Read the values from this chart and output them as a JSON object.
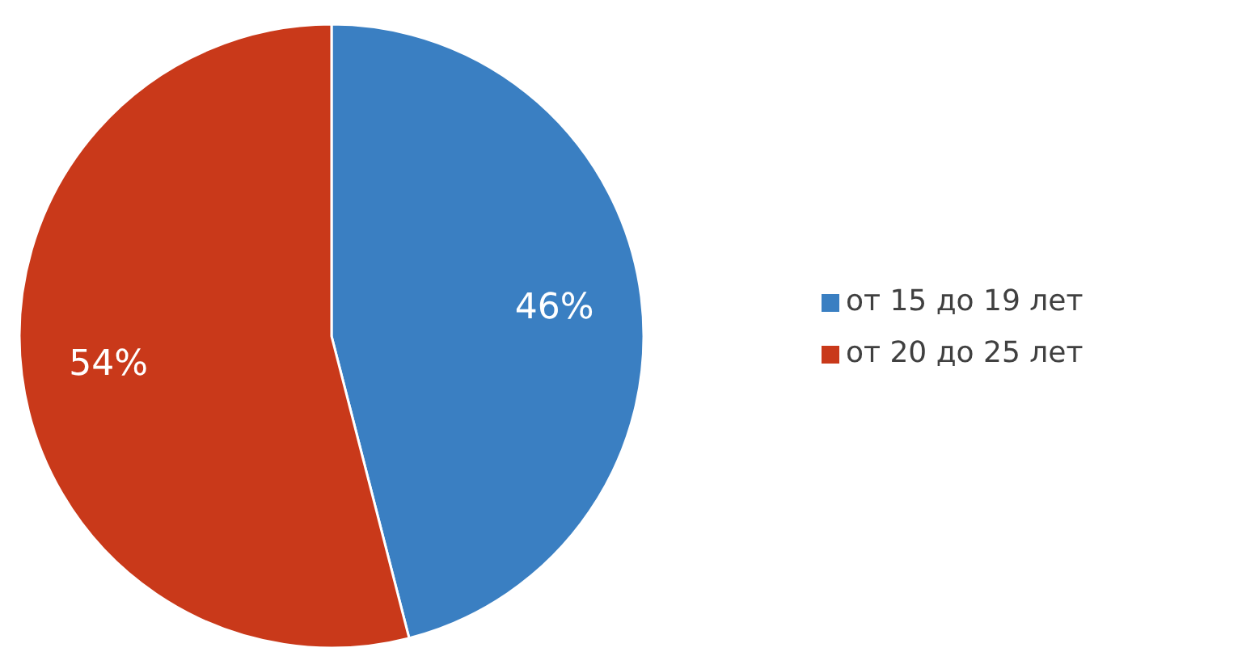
{
  "chart_data": {
    "type": "pie",
    "categories": [
      "от 15 до 19 лет",
      "от 20 до 25 лет"
    ],
    "values": [
      46,
      54
    ],
    "colors": [
      "#3a7fc2",
      "#c9391a"
    ],
    "value_labels": [
      "46%",
      "54%"
    ],
    "legend": "right"
  }
}
